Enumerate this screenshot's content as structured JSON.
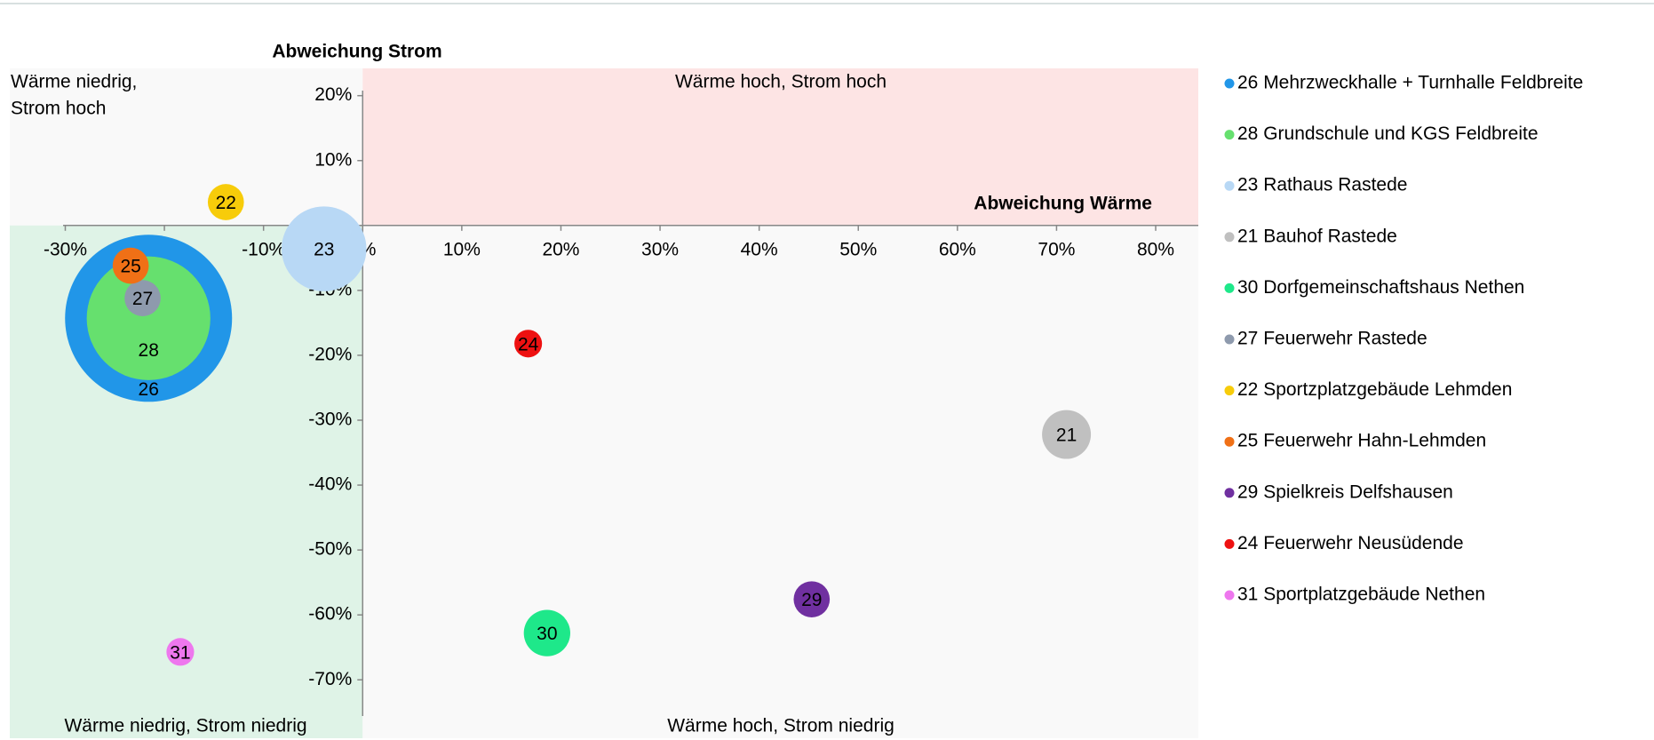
{
  "chart_data": {
    "type": "bubble",
    "y_axis_title": "Abweichung Strom",
    "x_axis_title": "Abweichung Wärme",
    "quadrants": {
      "top_left": [
        "Wärme niedrig,",
        "Strom hoch"
      ],
      "top_right": "Wärme hoch, Strom hoch",
      "bottom_left": "Wärme niedrig, Strom niedrig",
      "bottom_right": "Wärme hoch, Strom niedrig"
    },
    "quadrant_colors": {
      "top_left": "#f9f9f9",
      "top_right": "#fde4e4",
      "bottom_left": "#dff3e7",
      "bottom_right": "#f9f9f9"
    },
    "xlim": [
      -35.6,
      84.3
    ],
    "ylim": [
      -79,
      24.2
    ],
    "xticks": [
      {
        "value": -30,
        "label": "-30%"
      },
      {
        "value": -20,
        "label": "-20%"
      },
      {
        "value": -10,
        "label": "-10%"
      },
      {
        "value": 0,
        "label": "0%"
      },
      {
        "value": 10,
        "label": "10%"
      },
      {
        "value": 20,
        "label": "20%"
      },
      {
        "value": 30,
        "label": "30%"
      },
      {
        "value": 40,
        "label": "40%"
      },
      {
        "value": 50,
        "label": "50%"
      },
      {
        "value": 60,
        "label": "60%"
      },
      {
        "value": 70,
        "label": "70%"
      },
      {
        "value": 80,
        "label": "80%"
      }
    ],
    "yticks": [
      {
        "value": 20,
        "label": "20%"
      },
      {
        "value": 10,
        "label": "10%"
      },
      {
        "value": 0,
        "label": "0%"
      },
      {
        "value": -10,
        "label": "-10%"
      },
      {
        "value": -20,
        "label": "-20%"
      },
      {
        "value": -30,
        "label": "-30%"
      },
      {
        "value": -40,
        "label": "-40%"
      },
      {
        "value": -50,
        "label": "-50%"
      },
      {
        "value": -60,
        "label": "-60%"
      },
      {
        "value": -70,
        "label": "-70%"
      }
    ],
    "legend": "right",
    "series": [
      {
        "name": "26 Mehrzweckhalle + Turnhalle Feldbreite",
        "label": "26",
        "color": "#2196e8",
        "x": [
          -21.6
        ],
        "values": [
          -14.3
        ],
        "sizes": [
          62
        ]
      },
      {
        "name": "28 Grundschule und KGS Feldbreite",
        "label": "28",
        "color": "#66e06e",
        "x": [
          -21.6
        ],
        "values": [
          -14.3
        ],
        "sizes": [
          34
        ]
      },
      {
        "name": "23 Rathaus Rastede",
        "label": "23",
        "color": "#b8d8f5",
        "x": [
          -3.9
        ],
        "values": [
          -3.6
        ],
        "sizes": [
          16
        ]
      },
      {
        "name": "21 Bauhof Rastede",
        "label": "21",
        "color": "#c0c0c0",
        "x": [
          71
        ],
        "values": [
          -32.2
        ],
        "sizes": [
          5.3
        ]
      },
      {
        "name": "30 Dorfgemeinschaftshaus Nethen",
        "label": "30",
        "color": "#1ee88a",
        "x": [
          18.6
        ],
        "values": [
          -62.8
        ],
        "sizes": [
          4.8
        ]
      },
      {
        "name": "27 Feuerwehr Rastede",
        "label": "27",
        "color": "#8e9aad",
        "x": [
          -22.2
        ],
        "values": [
          -11.2
        ],
        "sizes": [
          2.9
        ]
      },
      {
        "name": "22 Sportzplatzgebäude Lehmden",
        "label": "22",
        "color": "#f7cc0a",
        "x": [
          -13.8
        ],
        "values": [
          3.6
        ],
        "sizes": [
          2.9
        ]
      },
      {
        "name": "25 Feuerwehr Hahn-Lehmden",
        "label": "25",
        "color": "#f07016",
        "x": [
          -23.4
        ],
        "values": [
          -6.2
        ],
        "sizes": [
          2.9
        ]
      },
      {
        "name": "29 Spielkreis Delfshausen",
        "label": "29",
        "color": "#7030a0",
        "x": [
          45.3
        ],
        "values": [
          -57.6
        ],
        "sizes": [
          2.9
        ]
      },
      {
        "name": "24 Feuerwehr Neusüdende",
        "label": "24",
        "color": "#ee1111",
        "x": [
          16.7
        ],
        "values": [
          -18.2
        ],
        "sizes": [
          1.7
        ]
      },
      {
        "name": "31 Sportplatzgebäude Nethen",
        "label": "31",
        "color": "#ee77ee",
        "x": [
          -18.4
        ],
        "values": [
          -65.7
        ],
        "sizes": [
          1.7
        ]
      }
    ]
  }
}
